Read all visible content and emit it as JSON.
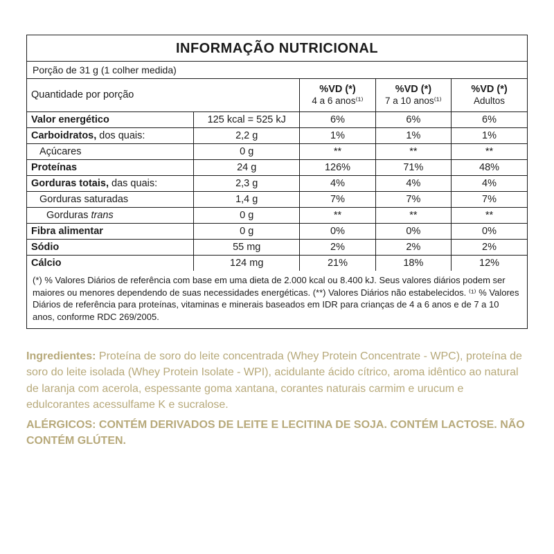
{
  "panel": {
    "title": "INFORMAÇÃO NUTRICIONAL",
    "serving": "Porção de 31 g (1 colher medida)",
    "qpp": "Quantidade por porção",
    "columns": [
      {
        "top": "%VD (*)",
        "sub": "4 a 6 anos⁽¹⁾"
      },
      {
        "top": "%VD (*)",
        "sub": "7 a 10 anos⁽¹⁾"
      },
      {
        "top": "%VD (*)",
        "sub": "Adultos"
      }
    ],
    "rows": [
      {
        "label": "Valor energético",
        "bold": true,
        "indent": 0,
        "amount": "125 kcal = 525 kJ",
        "dv": [
          "6%",
          "6%",
          "6%"
        ]
      },
      {
        "label": "Carboidratos,",
        "suffix": " dos quais:",
        "bold": true,
        "indent": 0,
        "amount": "2,2 g",
        "dv": [
          "1%",
          "1%",
          "1%"
        ]
      },
      {
        "label": "Açúcares",
        "bold": false,
        "indent": 1,
        "amount": "0 g",
        "dv": [
          "**",
          "**",
          "**"
        ]
      },
      {
        "label": "Proteínas",
        "bold": true,
        "indent": 0,
        "amount": "24 g",
        "dv": [
          "126%",
          "71%",
          "48%"
        ]
      },
      {
        "label": "Gorduras totais,",
        "suffix": " das quais:",
        "bold": true,
        "indent": 0,
        "amount": "2,3 g",
        "dv": [
          "4%",
          "4%",
          "4%"
        ]
      },
      {
        "label": "Gorduras saturadas",
        "bold": false,
        "indent": 1,
        "amount": "1,4 g",
        "dv": [
          "7%",
          "7%",
          "7%"
        ]
      },
      {
        "label": "Gorduras ",
        "italic_suffix": "trans",
        "bold": false,
        "indent": 2,
        "amount": "0 g",
        "dv": [
          "**",
          "**",
          "**"
        ]
      },
      {
        "label": "Fibra alimentar",
        "bold": true,
        "indent": 0,
        "amount": "0 g",
        "dv": [
          "0%",
          "0%",
          "0%"
        ]
      },
      {
        "label": "Sódio",
        "bold": true,
        "indent": 0,
        "amount": "55 mg",
        "dv": [
          "2%",
          "2%",
          "2%"
        ]
      },
      {
        "label": "Cálcio",
        "bold": true,
        "indent": 0,
        "amount": "124 mg",
        "dv": [
          "21%",
          "18%",
          "12%"
        ]
      }
    ],
    "footnote": "(*) % Valores Diários de referência com base em uma dieta de 2.000 kcal ou 8.400 kJ. Seus valores diários podem ser maiores ou menores dependendo de suas necessidades energéticas. (**) Valores Diários não estabelecidos. ⁽¹⁾ % Valores Diários de referência para proteínas, vitaminas e minerais baseados em IDR para crianças de 4 a 6 anos e de 7 a 10 anos, conforme RDC 269/2005."
  },
  "ingredients": {
    "header": "Ingredientes:",
    "text": " Proteína de soro do leite concentrada (Whey Protein Concentrate - WPC), proteína de soro do leite isolada (Whey Protein Isolate - WPI), acidulante ácido cítrico, aroma idêntico ao natural de laranja com acerola, espessante goma xantana, corantes naturais carmim e urucum e edulcorantes acessulfame K e sucralose."
  },
  "allergen": "ALÉRGICOS: CONTÉM DERIVADOS DE LEITE E LECITINA DE SOJA. CONTÉM LACTOSE. NÃO CONTÉM GLÚTEN.",
  "style": {
    "text_color": "#1a1a1a",
    "accent_color": "#b7a97a",
    "background": "#ffffff"
  }
}
